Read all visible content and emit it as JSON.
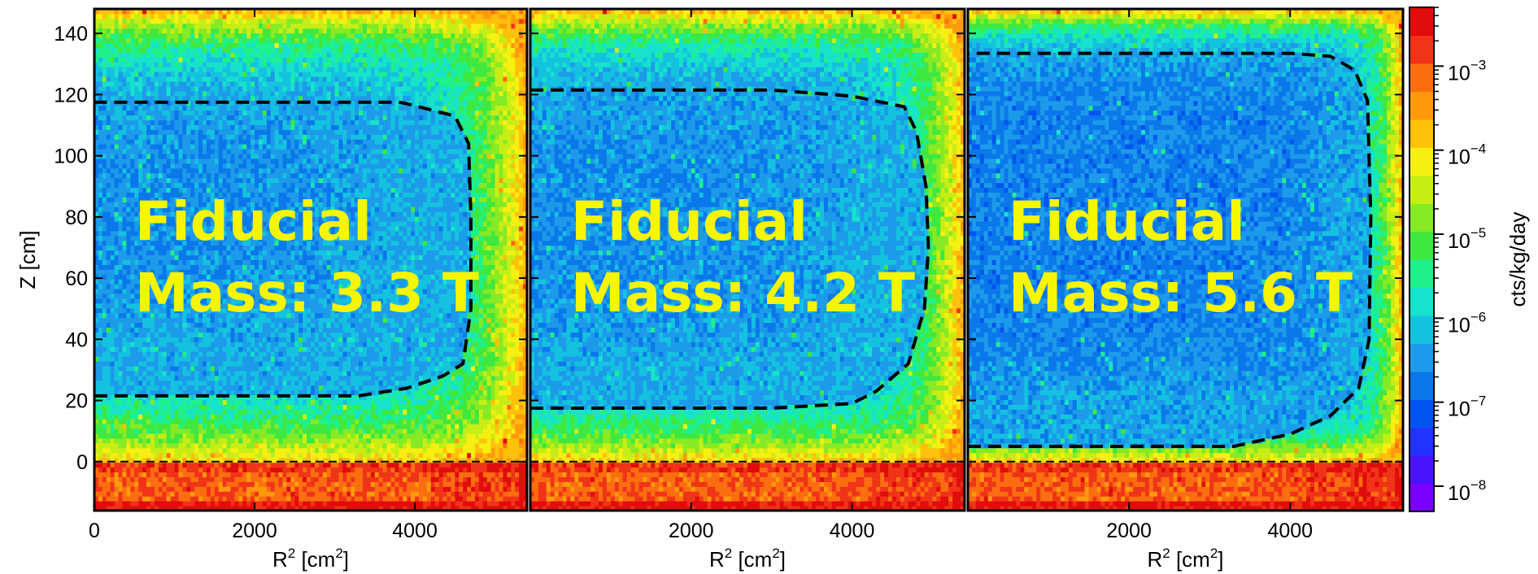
{
  "colors": {
    "annotation": "#f6f600",
    "dashed_cut": "#000000",
    "colormap": [
      "#7a00ff",
      "#4b14ff",
      "#2233ff",
      "#0055ee",
      "#0a78ea",
      "#1d9aea",
      "#14c2e0",
      "#17e2cc",
      "#1ff08c",
      "#3fe83e",
      "#86ea24",
      "#c6ee16",
      "#f6f012",
      "#ffc10a",
      "#ff9a0e",
      "#fa6e10",
      "#f03418",
      "#e10c0c"
    ]
  },
  "chart_data": [
    {
      "type": "heatmap",
      "panel": "left",
      "xlabel": "R",
      "xlabel_sup": "2",
      "xlabel_units": " [cm",
      "xlabel_units_sup": "2",
      "xlabel_close": "]",
      "ylabel": "Z [cm]",
      "xlim": [
        0,
        5400
      ],
      "ylim": [
        -16,
        148
      ],
      "x_ticks": [
        0,
        2000,
        4000
      ],
      "y_ticks": [
        0,
        20,
        40,
        60,
        80,
        100,
        120,
        140
      ],
      "annotation": {
        "line1": "Fiducial",
        "line2": "Mass: 3.3 T"
      },
      "fiducial_contour": [
        [
          0,
          21.5
        ],
        [
          3300,
          21.5
        ],
        [
          3900,
          24
        ],
        [
          4350,
          28
        ],
        [
          4600,
          32
        ],
        [
          4700,
          50
        ],
        [
          4700,
          80
        ],
        [
          4670,
          104
        ],
        [
          4500,
          113
        ],
        [
          3900,
          117
        ],
        [
          3800,
          117.5
        ],
        [
          0,
          117.5
        ]
      ],
      "reference_line_z": 0,
      "background_model": {
        "fiducial_level": -6.6,
        "edge_level": -3.6,
        "decay_x": 420,
        "decay_z": 7
      }
    },
    {
      "type": "heatmap",
      "panel": "middle",
      "xlabel": "R",
      "xlabel_sup": "2",
      "xlabel_units": " [cm",
      "xlabel_units_sup": "2",
      "xlabel_close": "]",
      "xlim": [
        0,
        5400
      ],
      "ylim": [
        -16,
        148
      ],
      "x_ticks": [
        2000,
        4000
      ],
      "annotation": {
        "line1": "Fiducial",
        "line2": "Mass: 4.2 T"
      },
      "fiducial_contour": [
        [
          0,
          17.5
        ],
        [
          3000,
          17.5
        ],
        [
          4000,
          19
        ],
        [
          4300,
          23
        ],
        [
          4700,
          32
        ],
        [
          4900,
          50
        ],
        [
          4950,
          70
        ],
        [
          4920,
          90
        ],
        [
          4800,
          108
        ],
        [
          4650,
          116
        ],
        [
          4000,
          119.5
        ],
        [
          3000,
          121.5
        ],
        [
          0,
          121.5
        ]
      ],
      "reference_line_z": 0,
      "background_model": {
        "fiducial_level": -6.6,
        "edge_level": -3.6,
        "decay_x": 330,
        "decay_z": 6
      }
    },
    {
      "type": "heatmap",
      "panel": "right",
      "xlabel": "R",
      "xlabel_sup": "2",
      "xlabel_units": " [cm",
      "xlabel_units_sup": "2",
      "xlabel_close": "]",
      "xlim": [
        0,
        5400
      ],
      "ylim": [
        -16,
        148
      ],
      "x_ticks": [
        2000,
        4000
      ],
      "annotation": {
        "line1": "Fiducial",
        "line2": "Mass: 5.6 T"
      },
      "fiducial_contour": [
        [
          0,
          5
        ],
        [
          3300,
          5
        ],
        [
          4000,
          9
        ],
        [
          4500,
          15
        ],
        [
          4850,
          24
        ],
        [
          4980,
          40
        ],
        [
          5000,
          80
        ],
        [
          4960,
          118
        ],
        [
          4800,
          128
        ],
        [
          4500,
          132.5
        ],
        [
          4000,
          133.5
        ],
        [
          0,
          133.5
        ]
      ],
      "reference_line_z": 0,
      "background_model": {
        "fiducial_level": -6.7,
        "edge_level": -3.6,
        "decay_x": 200,
        "decay_z": 4
      }
    },
    {
      "type": "colorbar",
      "label": "cts/kg/day",
      "scale": "log",
      "range_exponents": [
        -8.3,
        -2.3
      ],
      "tick_base": "10",
      "ticks": [
        {
          "exp": "−3",
          "value": -3
        },
        {
          "exp": "−4",
          "value": -4
        },
        {
          "exp": "−5",
          "value": -5
        },
        {
          "exp": "−6",
          "value": -6
        },
        {
          "exp": "−7",
          "value": -7
        },
        {
          "exp": "−8",
          "value": -8
        }
      ]
    }
  ]
}
